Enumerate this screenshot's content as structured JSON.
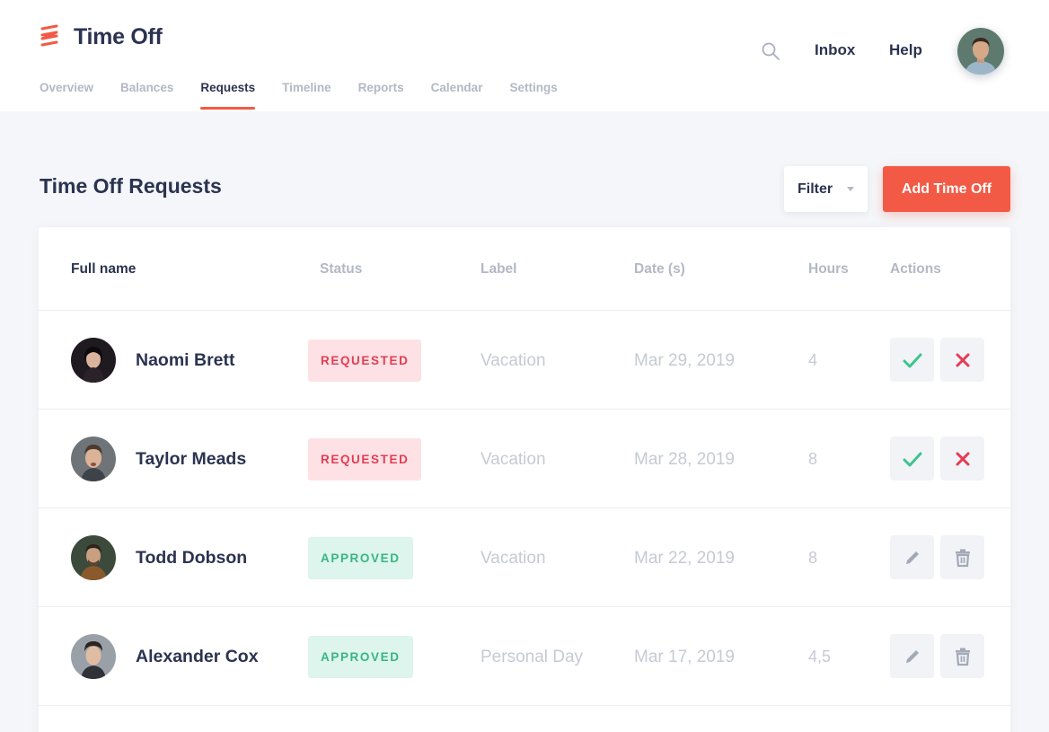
{
  "app": {
    "title": "Time Off"
  },
  "nav": {
    "tabs": [
      {
        "label": "Overview"
      },
      {
        "label": "Balances"
      },
      {
        "label": "Requests",
        "active": true
      },
      {
        "label": "Timeline"
      },
      {
        "label": "Reports"
      },
      {
        "label": "Calendar"
      },
      {
        "label": "Settings"
      }
    ]
  },
  "topbar": {
    "inbox": "Inbox",
    "help": "Help"
  },
  "page": {
    "title": "Time Off Requests",
    "filter_label": "Filter",
    "add_label": "Add Time Off"
  },
  "table": {
    "columns": [
      "Full name",
      "Status",
      "Label",
      "Date (s)",
      "Hours",
      "Actions"
    ],
    "rows": [
      {
        "name": "Naomi Brett",
        "status": "REQUESTED",
        "label": "Vacation",
        "date": "Mar 29, 2019",
        "hours": "4",
        "actions": [
          "approve-icon",
          "reject-icon"
        ]
      },
      {
        "name": "Taylor Meads",
        "status": "REQUESTED",
        "label": "Vacation",
        "date": "Mar 28, 2019",
        "hours": "8",
        "actions": [
          "approve-icon",
          "reject-icon"
        ]
      },
      {
        "name": "Todd Dobson",
        "status": "APPROVED",
        "label": "Vacation",
        "date": "Mar 22, 2019",
        "hours": "8",
        "actions": [
          "pencil-icon",
          "trash-icon"
        ]
      },
      {
        "name": "Alexander Cox",
        "status": "APPROVED",
        "label": "Personal Day",
        "date": "Mar 17, 2019",
        "hours": "4,5",
        "actions": [
          "pencil-icon",
          "trash-icon"
        ]
      }
    ]
  },
  "colors": {
    "accent": "#f25a45",
    "text_dark": "#2b3350",
    "text_muted": "#b3b8c4",
    "requested_bg": "#fde1e4",
    "requested_text": "#e23d55",
    "approved_bg": "#ddf5ec",
    "approved_text": "#39b584"
  }
}
